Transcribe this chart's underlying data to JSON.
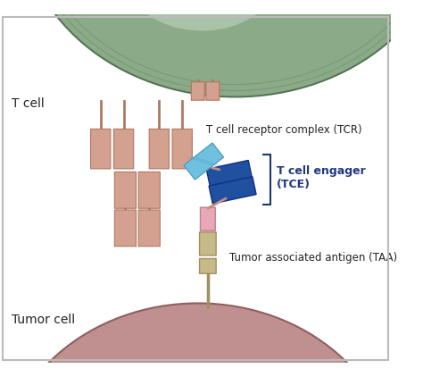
{
  "bg_color": "#ffffff",
  "border_color": "#bbbbbb",
  "t_cell_color_outer": "#7a9a7a",
  "t_cell_color_inner": "#d0ddd0",
  "tumor_cell_color_outer": "#b08888",
  "tumor_cell_color_inner": "#e8d0d0",
  "tcr_color": "#d4a090",
  "tcr_edge": "#b07860",
  "tce_blue_light": "#70c0e0",
  "tce_blue_light_edge": "#50a0c0",
  "tce_blue_dark": "#2050a0",
  "tce_blue_dark_edge": "#103080",
  "taa_pink": "#e8a8b8",
  "taa_pink_edge": "#c08090",
  "taa_tan": "#c8ba88",
  "taa_tan_edge": "#a09060",
  "bracket_color": "#203870",
  "label_tcell": "T cell",
  "label_tumor": "Tumor cell",
  "label_tcr": "T cell receptor complex (TCR)",
  "label_tce": "T cell engager\n(TCE)",
  "label_taa": "Tumor associated antigen (TAA)",
  "tce_label_color": "#203880",
  "text_color": "#222222"
}
